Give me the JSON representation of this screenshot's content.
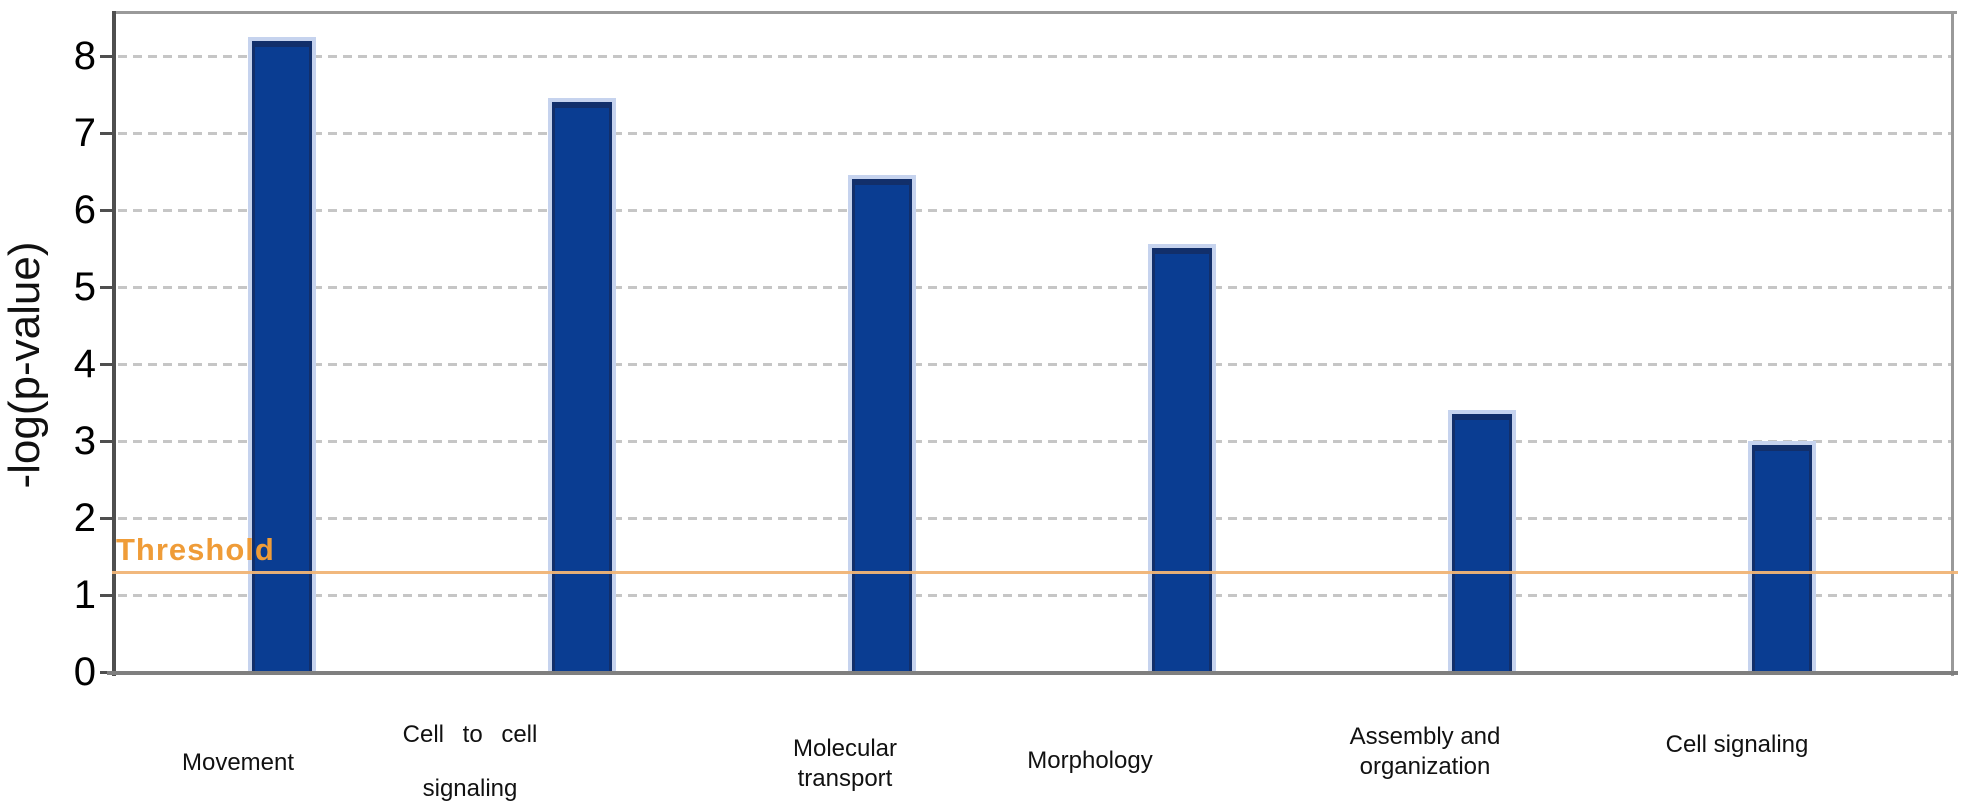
{
  "chart_data": {
    "type": "bar",
    "title": "",
    "ylabel": "-log(p-value)",
    "xlabel": "",
    "categories": [
      "Movement",
      "Cell to cell signaling",
      "Molecular transport",
      "Morphology",
      "Assembly and organization",
      "Cell signaling"
    ],
    "category_display_lines": [
      [
        "Movement"
      ],
      [
        "Cell to cell",
        "signaling"
      ],
      [
        "Molecular",
        "transport"
      ],
      [
        "Morphology"
      ],
      [
        "Assembly and",
        "organization"
      ],
      [
        "Cell signaling"
      ]
    ],
    "values": [
      8.2,
      7.4,
      6.4,
      5.5,
      3.35,
      2.95
    ],
    "ylim": [
      0,
      8.5
    ],
    "yticks": [
      0,
      1,
      2,
      3,
      4,
      5,
      6,
      7,
      8
    ],
    "grid": "horizontal-dashed",
    "legend": "none",
    "threshold": {
      "label": "Threshold",
      "value": 1.3
    },
    "colors": {
      "bar_fill": "#0a3d92",
      "bar_edge": "#122f6a",
      "bar_halo": "#c6d3ee",
      "threshold_line": "#f0b476",
      "threshold_text": "#ef9c38",
      "gridline": "#c6c6c6",
      "axis_left": "#4f4f4f",
      "axis_bottom": "#7f7f7f",
      "plot_border": "#9a9a9a"
    }
  }
}
